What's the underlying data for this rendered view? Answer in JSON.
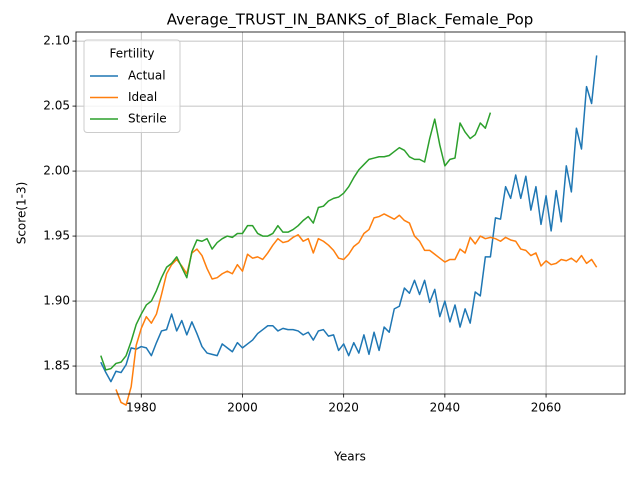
{
  "chart_data": {
    "type": "line",
    "title": "Average_TRUST_IN_BANKS_of_Black_Female_Pop",
    "xlabel": "Years",
    "ylabel": "Score(1-3)",
    "legend_title": "Fertility",
    "legend": "upper left",
    "grid": true,
    "x": [
      1972,
      1973,
      1974,
      1975,
      1976,
      1977,
      1978,
      1979,
      1980,
      1981,
      1982,
      1983,
      1984,
      1985,
      1986,
      1987,
      1988,
      1989,
      1990,
      1991,
      1992,
      1993,
      1994,
      1995,
      1996,
      1997,
      1998,
      1999,
      2000,
      2001,
      2002,
      2003,
      2004,
      2005,
      2006,
      2007,
      2008,
      2009,
      2010,
      2011,
      2012,
      2013,
      2014,
      2015,
      2016,
      2017,
      2018,
      2019,
      2020,
      2021,
      2022,
      2023,
      2024,
      2025,
      2026,
      2027,
      2028,
      2029,
      2030,
      2031,
      2032,
      2033,
      2034,
      2035,
      2036,
      2037,
      2038,
      2039,
      2040,
      2041,
      2042,
      2043,
      2044,
      2045,
      2046,
      2047,
      2048,
      2049,
      2050,
      2051,
      2052,
      2053,
      2054,
      2055,
      2056,
      2057,
      2058,
      2059,
      2060,
      2061,
      2062,
      2063,
      2064,
      2065,
      2066,
      2067,
      2068,
      2069,
      2070
    ],
    "series": [
      {
        "name": "Actual",
        "color": "#1f77b4",
        "values": [
          1.853,
          1.845,
          1.838,
          1.846,
          1.845,
          1.851,
          1.864,
          1.863,
          1.865,
          1.864,
          1.858,
          1.868,
          1.877,
          1.878,
          1.89,
          1.877,
          1.885,
          1.874,
          1.884,
          1.875,
          1.865,
          1.86,
          1.859,
          1.858,
          1.867,
          1.864,
          1.861,
          1.868,
          1.864,
          1.867,
          1.87,
          1.875,
          1.878,
          1.881,
          1.881,
          1.877,
          1.879,
          1.878,
          1.878,
          1.877,
          1.874,
          1.876,
          1.87,
          1.877,
          1.878,
          1.873,
          1.874,
          1.862,
          1.867,
          1.858,
          1.868,
          1.86,
          1.874,
          1.859,
          1.876,
          1.862,
          1.88,
          1.876,
          1.894,
          1.896,
          1.91,
          1.906,
          1.916,
          1.905,
          1.916,
          1.899,
          1.909,
          1.888,
          1.9,
          1.884,
          1.897,
          1.88,
          1.894,
          1.883,
          1.907,
          1.904,
          1.934,
          1.934,
          1.964,
          1.963,
          1.988,
          1.979,
          1.997,
          1.979,
          1.996,
          1.97,
          1.988,
          1.959,
          1.981,
          1.954,
          1.985,
          1.961,
          2.004,
          1.984,
          2.033,
          2.017,
          2.065,
          2.052,
          2.089
        ]
      },
      {
        "name": "Ideal",
        "color": "#ff7f0e",
        "values": [
          null,
          null,
          null,
          1.832,
          1.822,
          1.82,
          1.834,
          1.866,
          1.879,
          1.888,
          1.883,
          1.89,
          1.905,
          1.921,
          1.928,
          1.932,
          1.927,
          1.921,
          1.937,
          1.94,
          1.935,
          1.925,
          1.917,
          1.918,
          1.921,
          1.923,
          1.921,
          1.928,
          1.923,
          1.936,
          1.933,
          1.934,
          1.932,
          1.937,
          1.943,
          1.948,
          1.945,
          1.946,
          1.949,
          1.951,
          1.946,
          1.948,
          1.937,
          1.948,
          1.946,
          1.943,
          1.939,
          1.933,
          1.932,
          1.936,
          1.942,
          1.945,
          1.952,
          1.955,
          1.964,
          1.965,
          1.967,
          1.965,
          1.963,
          1.966,
          1.962,
          1.96,
          1.95,
          1.946,
          1.939,
          1.939,
          1.936,
          1.933,
          1.93,
          1.932,
          1.932,
          1.94,
          1.937,
          1.949,
          1.944,
          1.95,
          1.948,
          1.949,
          1.948,
          1.946,
          1.949,
          1.947,
          1.946,
          1.94,
          1.939,
          1.935,
          1.937,
          1.927,
          1.931,
          1.928,
          1.929,
          1.932,
          1.931,
          1.933,
          1.93,
          1.935,
          1.929,
          1.932,
          1.926
        ]
      },
      {
        "name": "Sterile",
        "color": "#2ca02c",
        "values": [
          1.858,
          1.847,
          1.848,
          1.852,
          1.853,
          1.858,
          1.869,
          1.882,
          1.89,
          1.897,
          1.9,
          1.908,
          1.918,
          1.926,
          1.929,
          1.934,
          1.926,
          1.918,
          1.938,
          1.947,
          1.946,
          1.948,
          1.94,
          1.945,
          1.948,
          1.95,
          1.949,
          1.952,
          1.952,
          1.958,
          1.958,
          1.952,
          1.95,
          1.95,
          1.952,
          1.958,
          1.953,
          1.953,
          1.955,
          1.958,
          1.962,
          1.965,
          1.96,
          1.972,
          1.973,
          1.977,
          1.979,
          1.98,
          1.983,
          1.988,
          1.995,
          2.001,
          2.005,
          2.009,
          2.01,
          2.011,
          2.011,
          2.012,
          2.015,
          2.018,
          2.016,
          2.011,
          2.009,
          2.009,
          2.007,
          2.025,
          2.04,
          2.02,
          2.004,
          2.009,
          2.01,
          2.037,
          2.03,
          2.025,
          2.028,
          2.037,
          2.033,
          2.045,
          null,
          null,
          null,
          null,
          null,
          null,
          null,
          null,
          null,
          null,
          null,
          null,
          null,
          null,
          null,
          null,
          null,
          null,
          null,
          null,
          null
        ]
      }
    ],
    "xlim": [
      1967.1,
      2075.6
    ],
    "ylim": [
      1.8285,
      2.107
    ],
    "xticks": [
      1980,
      2000,
      2020,
      2040,
      2060
    ],
    "yticks": [
      1.85,
      {
        "value": 1.9,
        "label": "1.90"
      },
      1.95,
      {
        "value": 2.0,
        "label": "2.00"
      },
      2.05,
      {
        "value": 2.1,
        "label": "2.10"
      }
    ]
  }
}
